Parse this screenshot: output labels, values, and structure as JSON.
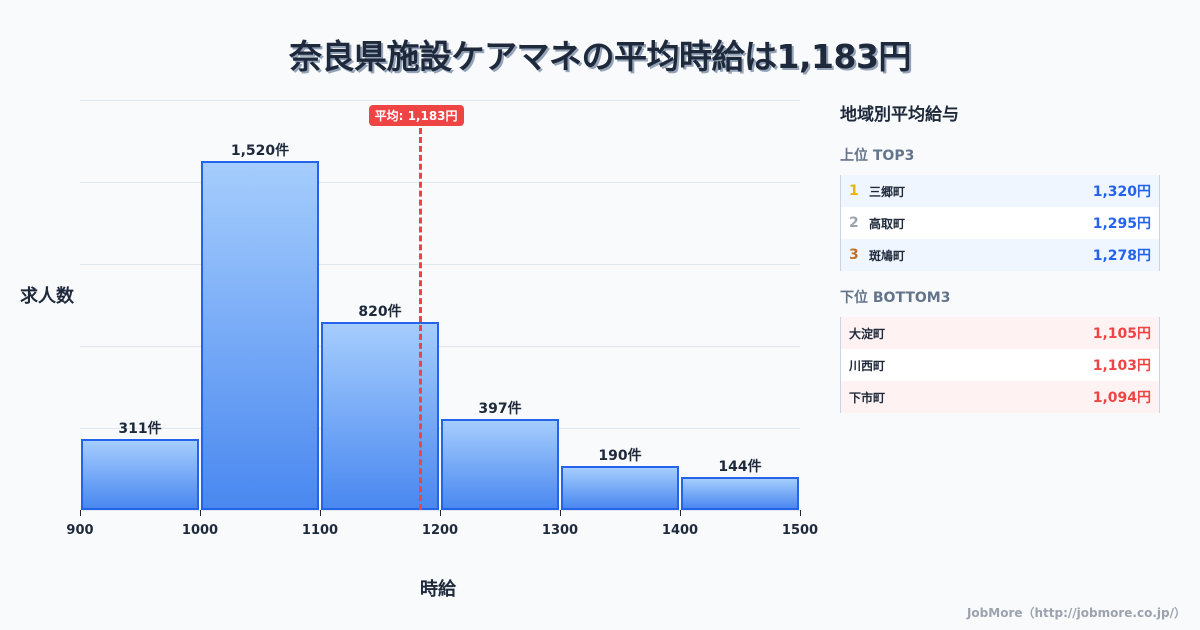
{
  "title": "奈良県施設ケアマネの平均時給は1,183円",
  "chart_data": {
    "type": "bar",
    "title": "奈良県施設ケアマネの平均時給は1,183円",
    "xlabel": "時給",
    "ylabel": "求人数",
    "categories": [
      "900-1000",
      "1000-1100",
      "1100-1200",
      "1200-1300",
      "1300-1400",
      "1400-1500"
    ],
    "bin_edges": [
      900,
      1000,
      1100,
      1200,
      1300,
      1400,
      1500
    ],
    "values": [
      311,
      1520,
      820,
      397,
      190,
      144
    ],
    "value_labels": [
      "311件",
      "1,520件",
      "820件",
      "397件",
      "190件",
      "144件"
    ],
    "x_tick_labels": [
      "900",
      "1000",
      "1100",
      "1200",
      "1300",
      "1400",
      "1500"
    ],
    "xlim": [
      900,
      1500
    ],
    "ylim": [
      0,
      1786
    ],
    "grid": true,
    "annotations": [
      {
        "type": "vline",
        "x": 1183,
        "label": "平均: 1,183円",
        "color": "#ef4444"
      }
    ],
    "bar_color": "#3b82f6"
  },
  "average_badge": "平均: 1,183円",
  "panel": {
    "title": "地域別平均給与",
    "top_title": "上位 TOP3",
    "top": [
      {
        "rank": "1",
        "name": "三郷町",
        "value": "1,320円",
        "rank_color": "#eab308"
      },
      {
        "rank": "2",
        "name": "高取町",
        "value": "1,295円",
        "rank_color": "#9ca3af"
      },
      {
        "rank": "3",
        "name": "斑鳩町",
        "value": "1,278円",
        "rank_color": "#c2702a"
      }
    ],
    "bottom_title": "下位 BOTTOM3",
    "bottom": [
      {
        "name": "大淀町",
        "value": "1,105円"
      },
      {
        "name": "川西町",
        "value": "1,103円"
      },
      {
        "name": "下市町",
        "value": "1,094円"
      }
    ]
  },
  "footer": "JobMore（http://jobmore.co.jp/）"
}
